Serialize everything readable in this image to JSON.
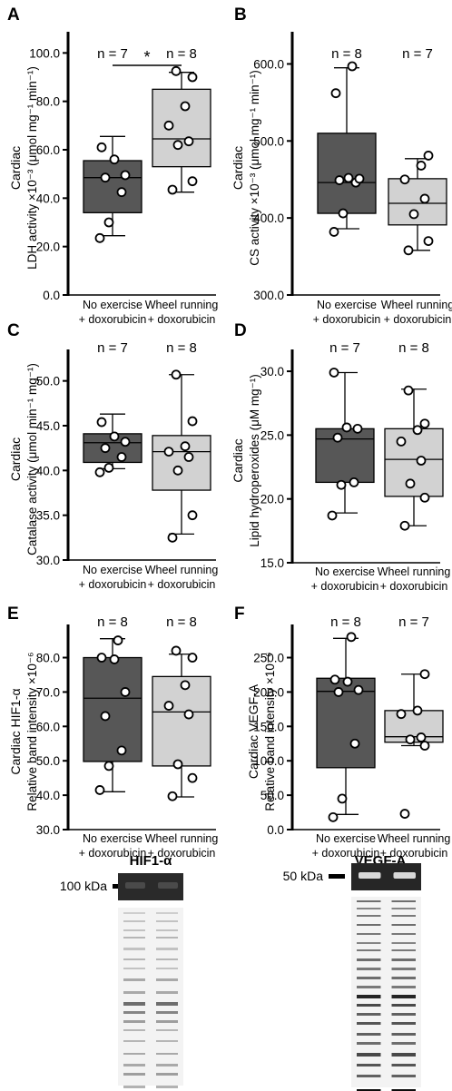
{
  "colors": {
    "no_exercise": "#575757",
    "wheel_running": "#d2d2d2",
    "stroke": "#000000"
  },
  "chart_data": [
    {
      "panel": "A",
      "type": "box",
      "ylabel": [
        "Cardiac",
        "LDH activity ×10⁻³ (μmol mg⁻¹ min⁻¹)"
      ],
      "ylim": [
        0,
        105
      ],
      "ticks": [
        0,
        20,
        40,
        60,
        80,
        100
      ],
      "tick_labels": [
        "0.0",
        "20.0",
        "40.0",
        "60.0",
        "80.0",
        "100.0"
      ],
      "categories": [
        [
          "No exercise",
          "+ doxorubicin"
        ],
        [
          "Wheel running",
          "+ doxorubicin"
        ]
      ],
      "n_labels": [
        "n = 7",
        "n = 8"
      ],
      "significance": "*",
      "series": [
        {
          "name": "No exercise + doxorubicin",
          "whisker": [
            24.5,
            65.5
          ],
          "box": [
            34,
            55.5
          ],
          "median": 48.5,
          "points": [
            23.5,
            30,
            42.5,
            48.5,
            49.5,
            56,
            61
          ]
        },
        {
          "name": "Wheel running + doxorubicin",
          "whisker": [
            42.5,
            92
          ],
          "box": [
            53,
            85
          ],
          "median": 64.5,
          "points": [
            43.5,
            47,
            62,
            63.5,
            70,
            78,
            90,
            92.5
          ]
        }
      ]
    },
    {
      "panel": "B",
      "type": "box",
      "ylabel": [
        "Cardiac",
        "CS activity ×10⁻³ (μmol mg⁻¹ min⁻¹)"
      ],
      "ylim": [
        300,
        630
      ],
      "ticks": [
        300,
        400,
        500,
        600
      ],
      "tick_labels": [
        "300.0",
        "400.0",
        "500.0",
        "600.0"
      ],
      "categories": [
        [
          "No exercise",
          "+ doxorubicin"
        ],
        [
          "Wheel running",
          "+ doxorubicin"
        ]
      ],
      "n_labels": [
        "n = 8",
        "n = 7"
      ],
      "series": [
        {
          "name": "No exercise + doxorubicin",
          "whisker": [
            386,
            595
          ],
          "box": [
            406,
            510
          ],
          "median": 446,
          "points": [
            382,
            406,
            446,
            449,
            451,
            452,
            562,
            597
          ]
        },
        {
          "name": "Wheel running + doxorubicin",
          "whisker": [
            358,
            477
          ],
          "box": [
            391,
            451
          ],
          "median": 419,
          "points": [
            358,
            370,
            405,
            425,
            450,
            468,
            481
          ]
        }
      ]
    },
    {
      "panel": "C",
      "type": "box",
      "ylabel": [
        "Cardiac",
        "Catalase activity (μmol min⁻¹ mg⁻¹)"
      ],
      "ylim": [
        30,
        52.5
      ],
      "ticks": [
        30,
        35,
        40,
        45,
        50
      ],
      "tick_labels": [
        "30.0",
        "35.0",
        "40.0",
        "45.0",
        "50.0"
      ],
      "categories": [
        [
          "No exercise",
          "+ doxorubicin"
        ],
        [
          "Wheel running",
          "+ doxorubicin"
        ]
      ],
      "n_labels": [
        "n = 7",
        "n = 8"
      ],
      "series": [
        {
          "name": "No exercise + doxorubicin",
          "whisker": [
            40.2,
            46.3
          ],
          "box": [
            40.9,
            44.1
          ],
          "median": 43.1,
          "points": [
            39.8,
            40.3,
            41.5,
            42.5,
            43.2,
            43.8,
            45.4
          ]
        },
        {
          "name": "Wheel running + doxorubicin",
          "whisker": [
            32.9,
            50.7
          ],
          "box": [
            37.8,
            43.9
          ],
          "median": 42.1,
          "points": [
            32.5,
            35,
            40,
            41.5,
            42.1,
            42.7,
            45.5,
            50.7
          ]
        }
      ]
    },
    {
      "panel": "D",
      "type": "box",
      "ylabel": [
        "Cardiac",
        "Lipid hydroperoxides (μM mg⁻¹)"
      ],
      "ylim": [
        15,
        31
      ],
      "ticks": [
        15,
        20,
        25,
        30
      ],
      "tick_labels": [
        "15.0",
        "20.0",
        "25.0",
        "30.0"
      ],
      "categories": [
        [
          "No exercise",
          "+ doxorubicin"
        ],
        [
          "Wheel running",
          "+ doxorubicin"
        ]
      ],
      "n_labels": [
        "n = 7",
        "n = 8"
      ],
      "series": [
        {
          "name": "No exercise + doxorubicin",
          "whisker": [
            18.9,
            29.9
          ],
          "box": [
            21.3,
            25.5
          ],
          "median": 24.7,
          "points": [
            18.7,
            21.1,
            21.3,
            24.8,
            25.5,
            25.6,
            29.9
          ]
        },
        {
          "name": "Wheel running + doxorubicin",
          "whisker": [
            17.9,
            28.6
          ],
          "box": [
            20.2,
            25.5
          ],
          "median": 23.1,
          "points": [
            17.9,
            20.1,
            21.2,
            23,
            24.5,
            25.4,
            25.9,
            28.5
          ]
        }
      ]
    },
    {
      "panel": "E",
      "type": "box",
      "ylabel": [
        "Cardiac HIF1-α",
        "Relative band intensity ×10⁻⁶"
      ],
      "ylim": [
        30,
        87
      ],
      "ticks": [
        30,
        40,
        50,
        60,
        70,
        80
      ],
      "tick_labels": [
        "30.0",
        "40.0",
        "50.0",
        "60.0",
        "70.0",
        "80.0"
      ],
      "categories": [
        [
          "No exercise",
          "+ doxorubicin"
        ],
        [
          "Wheel running",
          "+ doxorubicin"
        ]
      ],
      "n_labels": [
        "n = 8",
        "n = 8"
      ],
      "series": [
        {
          "name": "No exercise + doxorubicin",
          "whisker": [
            41,
            85.5
          ],
          "box": [
            49.8,
            80
          ],
          "median": 68.2,
          "points": [
            41.5,
            48.5,
            53,
            63,
            70,
            79.5,
            80,
            85
          ]
        },
        {
          "name": "Wheel running + doxorubicin",
          "whisker": [
            39.5,
            81
          ],
          "box": [
            48.5,
            74.5
          ],
          "median": 64.2,
          "points": [
            39.7,
            45,
            49,
            63.5,
            66,
            72,
            80,
            82
          ]
        }
      ]
    },
    {
      "panel": "F",
      "type": "box",
      "ylabel": [
        "Cardiac VEGF-A",
        "Relative band intensity ×10⁻⁶"
      ],
      "ylim": [
        0,
        285
      ],
      "ticks": [
        0,
        50,
        100,
        150,
        200,
        250
      ],
      "tick_labels": [
        "0.0",
        "50.0",
        "100.0",
        "150.0",
        "200.0",
        "250.0"
      ],
      "categories": [
        [
          "No exercise",
          "+ doxorubicin"
        ],
        [
          "Wheel running",
          "+ doxorubicin"
        ]
      ],
      "n_labels": [
        "n = 8",
        "n = 7"
      ],
      "series": [
        {
          "name": "No exercise + doxorubicin",
          "whisker": [
            22,
            278
          ],
          "box": [
            90,
            220
          ],
          "median": 201,
          "points": [
            18,
            45,
            125,
            200,
            203,
            215,
            218,
            280
          ]
        },
        {
          "name": "Wheel running + doxorubicin",
          "whisker": [
            122,
            226
          ],
          "box": [
            127,
            173
          ],
          "median": 135,
          "points": [
            23,
            122,
            131,
            134,
            168,
            173,
            226
          ]
        }
      ]
    }
  ],
  "blots": [
    {
      "name": "HIF1-α",
      "marker": "100 kDa"
    },
    {
      "name": "VEGF-A",
      "marker": "50 kDa"
    }
  ]
}
